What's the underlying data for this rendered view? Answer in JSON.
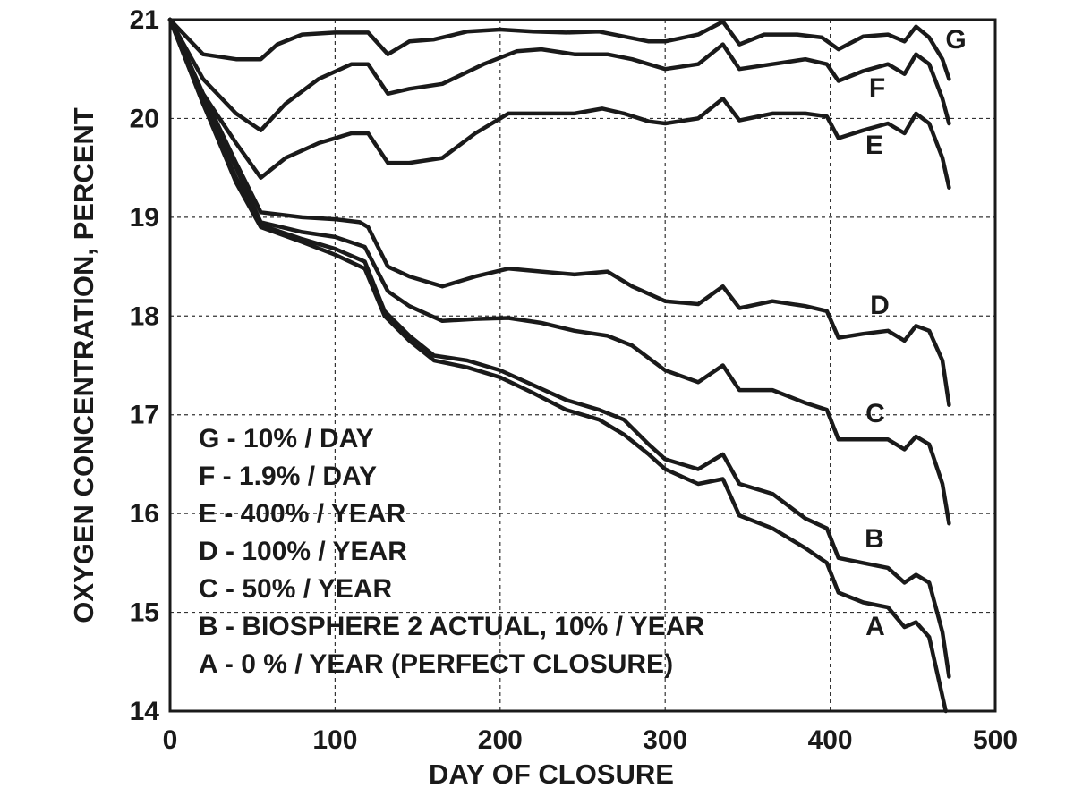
{
  "chart_data": {
    "type": "line",
    "title": "",
    "xlabel": "DAY OF CLOSURE",
    "ylabel": "OXYGEN CONCENTRATION, PERCENT",
    "xlim": [
      0,
      500
    ],
    "ylim": [
      14,
      21
    ],
    "xticks": [
      0,
      100,
      200,
      300,
      400,
      500
    ],
    "yticks": [
      14,
      15,
      16,
      17,
      18,
      19,
      20,
      21
    ],
    "grid": true,
    "legend_position": "bottom-left",
    "legend": [
      "G - 10% / DAY",
      "F - 1.9% / DAY",
      "E - 400% / YEAR",
      "D - 100% / YEAR",
      "C - 50% / YEAR",
      "B - BIOSPHERE 2 ACTUAL, 10% / YEAR",
      "A - 0 % / YEAR (PERFECT CLOSURE)"
    ],
    "series": [
      {
        "name": "G",
        "x": [
          0,
          20,
          40,
          55,
          65,
          80,
          100,
          120,
          132,
          145,
          160,
          180,
          200,
          220,
          240,
          260,
          275,
          290,
          300,
          320,
          335,
          345,
          360,
          380,
          395,
          405,
          420,
          435,
          445,
          452,
          460,
          468,
          472
        ],
        "y": [
          21.0,
          20.65,
          20.6,
          20.6,
          20.75,
          20.85,
          20.87,
          20.87,
          20.65,
          20.78,
          20.8,
          20.88,
          20.9,
          20.88,
          20.87,
          20.88,
          20.83,
          20.78,
          20.78,
          20.85,
          20.98,
          20.75,
          20.85,
          20.85,
          20.82,
          20.7,
          20.83,
          20.85,
          20.78,
          20.93,
          20.82,
          20.6,
          20.4
        ]
      },
      {
        "name": "F",
        "x": [
          0,
          20,
          40,
          55,
          70,
          90,
          110,
          120,
          132,
          145,
          165,
          190,
          210,
          225,
          245,
          265,
          280,
          300,
          320,
          335,
          345,
          365,
          385,
          398,
          405,
          420,
          435,
          445,
          452,
          460,
          468,
          472
        ],
        "y": [
          21.0,
          20.4,
          20.05,
          19.88,
          20.15,
          20.4,
          20.55,
          20.55,
          20.25,
          20.3,
          20.35,
          20.55,
          20.68,
          20.7,
          20.65,
          20.65,
          20.6,
          20.5,
          20.55,
          20.75,
          20.5,
          20.55,
          20.6,
          20.55,
          20.38,
          20.48,
          20.55,
          20.45,
          20.65,
          20.55,
          20.2,
          19.95
        ]
      },
      {
        "name": "E",
        "x": [
          0,
          20,
          40,
          55,
          70,
          90,
          110,
          120,
          132,
          145,
          165,
          185,
          205,
          225,
          245,
          262,
          275,
          290,
          300,
          320,
          335,
          345,
          365,
          385,
          398,
          405,
          420,
          435,
          445,
          452,
          460,
          468,
          472
        ],
        "y": [
          21.0,
          20.25,
          19.75,
          19.4,
          19.6,
          19.75,
          19.85,
          19.85,
          19.55,
          19.55,
          19.6,
          19.85,
          20.05,
          20.05,
          20.05,
          20.1,
          20.05,
          19.97,
          19.95,
          20.0,
          20.2,
          19.98,
          20.05,
          20.05,
          20.02,
          19.8,
          19.88,
          19.95,
          19.85,
          20.05,
          19.95,
          19.6,
          19.3
        ]
      },
      {
        "name": "D",
        "x": [
          0,
          20,
          40,
          55,
          80,
          100,
          115,
          120,
          132,
          145,
          165,
          185,
          205,
          225,
          245,
          265,
          280,
          300,
          320,
          335,
          345,
          365,
          385,
          398,
          405,
          420,
          435,
          445,
          452,
          460,
          468,
          472
        ],
        "y": [
          21.0,
          20.25,
          19.55,
          19.05,
          19.0,
          18.98,
          18.95,
          18.9,
          18.5,
          18.4,
          18.3,
          18.4,
          18.48,
          18.45,
          18.42,
          18.45,
          18.3,
          18.15,
          18.12,
          18.3,
          18.08,
          18.15,
          18.1,
          18.05,
          17.78,
          17.82,
          17.85,
          17.75,
          17.9,
          17.85,
          17.55,
          17.1
        ]
      },
      {
        "name": "C",
        "x": [
          0,
          20,
          40,
          55,
          80,
          100,
          118,
          132,
          145,
          165,
          185,
          205,
          225,
          245,
          265,
          280,
          300,
          320,
          335,
          345,
          365,
          385,
          398,
          405,
          420,
          435,
          445,
          452,
          460,
          468,
          472
        ],
        "y": [
          21.0,
          20.2,
          19.5,
          18.95,
          18.85,
          18.8,
          18.7,
          18.25,
          18.1,
          17.95,
          17.97,
          17.98,
          17.93,
          17.85,
          17.8,
          17.7,
          17.45,
          17.33,
          17.5,
          17.25,
          17.25,
          17.12,
          17.05,
          16.75,
          16.75,
          16.75,
          16.65,
          16.78,
          16.7,
          16.3,
          15.9
        ]
      },
      {
        "name": "B",
        "x": [
          0,
          20,
          40,
          55,
          80,
          100,
          118,
          130,
          145,
          160,
          180,
          200,
          220,
          240,
          260,
          275,
          290,
          300,
          320,
          335,
          345,
          365,
          385,
          398,
          405,
          420,
          435,
          445,
          452,
          460,
          468,
          472
        ],
        "y": [
          21.0,
          20.15,
          19.4,
          18.92,
          18.78,
          18.68,
          18.55,
          18.05,
          17.8,
          17.6,
          17.55,
          17.45,
          17.3,
          17.15,
          17.05,
          16.95,
          16.7,
          16.55,
          16.45,
          16.6,
          16.3,
          16.2,
          15.95,
          15.85,
          15.55,
          15.5,
          15.45,
          15.3,
          15.38,
          15.3,
          14.8,
          14.35
        ]
      },
      {
        "name": "A",
        "x": [
          0,
          20,
          40,
          55,
          80,
          100,
          118,
          130,
          145,
          160,
          180,
          200,
          220,
          240,
          260,
          275,
          290,
          300,
          320,
          335,
          345,
          365,
          385,
          398,
          405,
          420,
          435,
          445,
          452,
          460,
          466,
          470
        ],
        "y": [
          21.0,
          20.15,
          19.35,
          18.9,
          18.75,
          18.62,
          18.48,
          18.0,
          17.75,
          17.55,
          17.48,
          17.38,
          17.22,
          17.05,
          16.95,
          16.8,
          16.6,
          16.45,
          16.3,
          16.35,
          15.98,
          15.85,
          15.65,
          15.5,
          15.2,
          15.1,
          15.05,
          14.85,
          14.9,
          14.75,
          14.3,
          14.0
        ]
      }
    ]
  }
}
